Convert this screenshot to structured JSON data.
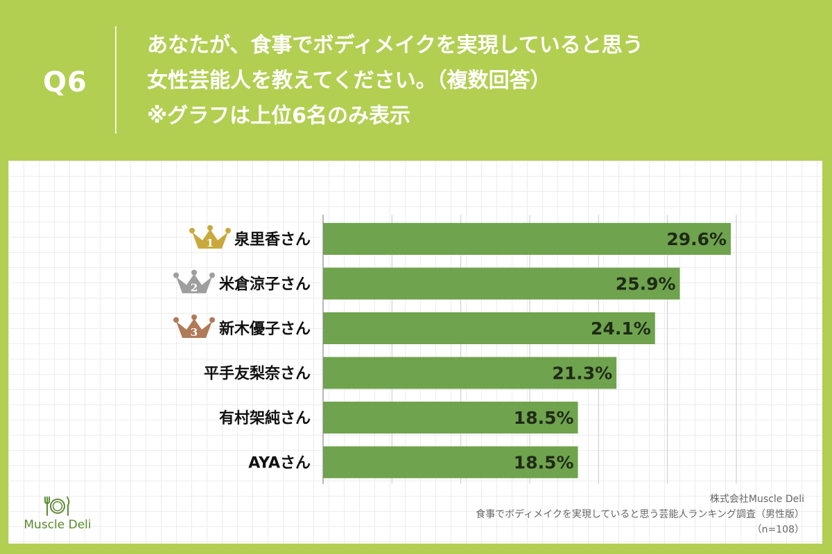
{
  "header": {
    "q_number": "Q6",
    "question_lines": [
      "あなたが、食事でボディメイクを実現していると思う",
      "女性芸能人を教えてください。（複数回答）",
      "※グラフは上位6名のみ表示"
    ]
  },
  "colors": {
    "background": "#b2cf51",
    "bar": "#6fa34e",
    "gold": "#c9a93c",
    "silver": "#9e9e9e",
    "bronze": "#b07a58"
  },
  "chart_data": {
    "type": "bar",
    "orientation": "horizontal",
    "categories": [
      "泉里香さん",
      "米倉涼子さん",
      "新木優子さん",
      "平手友梨奈さん",
      "有村架純さん",
      "AYAさん"
    ],
    "values": [
      29.6,
      25.9,
      24.1,
      21.3,
      18.5,
      18.5
    ],
    "value_labels": [
      "29.6%",
      "25.9%",
      "24.1%",
      "21.3%",
      "18.5%",
      "18.5%"
    ],
    "rank_badges": [
      "1",
      "2",
      "3"
    ],
    "xlim": [
      0,
      30
    ],
    "grid": true
  },
  "footer": {
    "lines": [
      "株式会社Muscle Deli",
      "食事でボディメイクを実現していると思う芸能人ランキング調査（男性版）",
      "（n=108）"
    ]
  },
  "logo": {
    "text": "Muscle Deli",
    "icon": "fork-plate-knife-icon"
  }
}
